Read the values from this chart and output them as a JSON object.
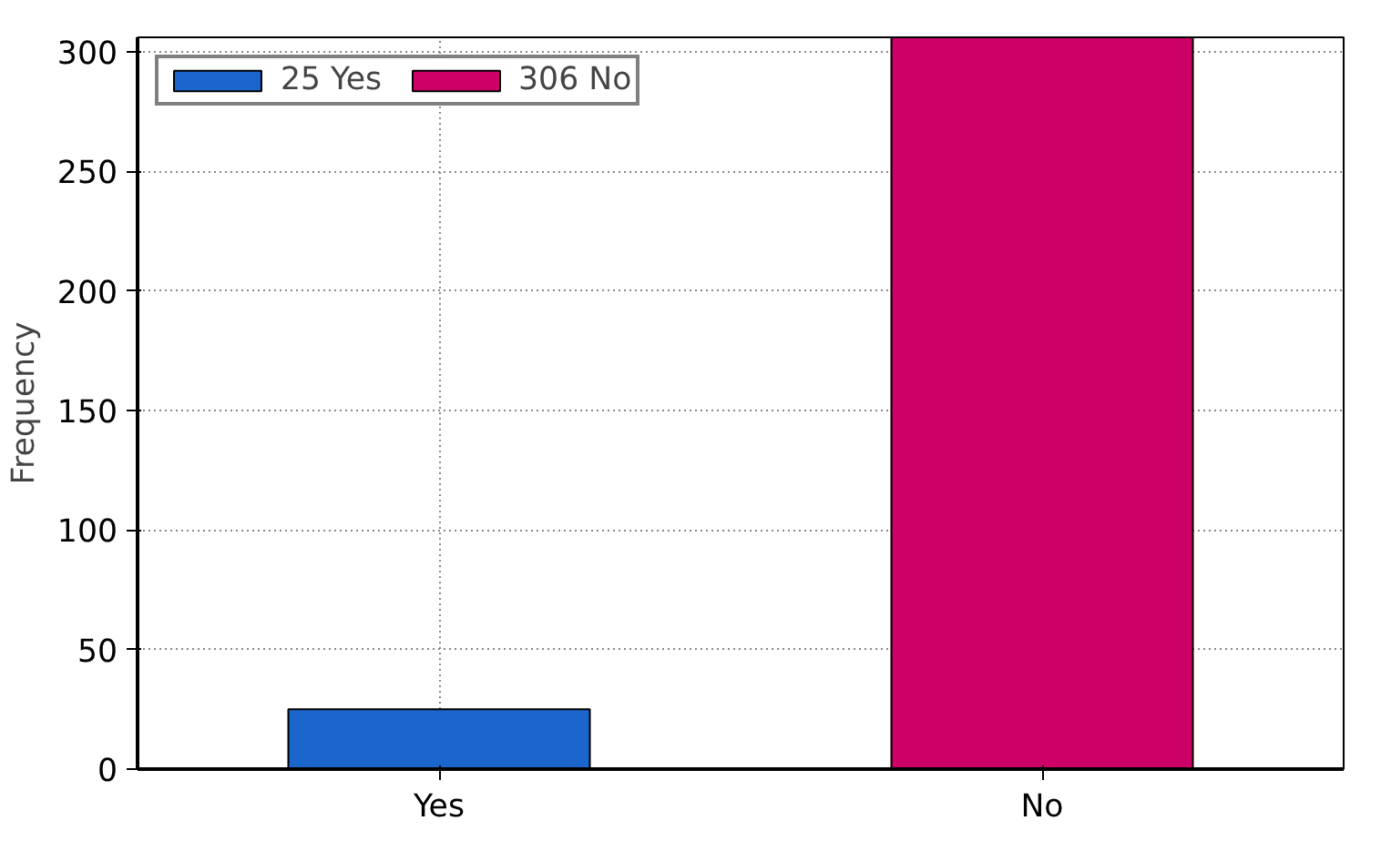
{
  "chart_data": {
    "type": "bar",
    "categories": [
      "Yes",
      "No"
    ],
    "series": [
      {
        "name": "25 Yes",
        "color": "#1a66cc",
        "values": [
          25,
          null
        ]
      },
      {
        "name": "306 No",
        "color": "#cc0066",
        "values": [
          null,
          306
        ]
      }
    ],
    "ylabel": "Frequency",
    "ylim": [
      0,
      306
    ],
    "yticks": [
      0,
      50,
      100,
      150,
      200,
      250,
      300
    ],
    "grid": true,
    "legend": "top left"
  }
}
